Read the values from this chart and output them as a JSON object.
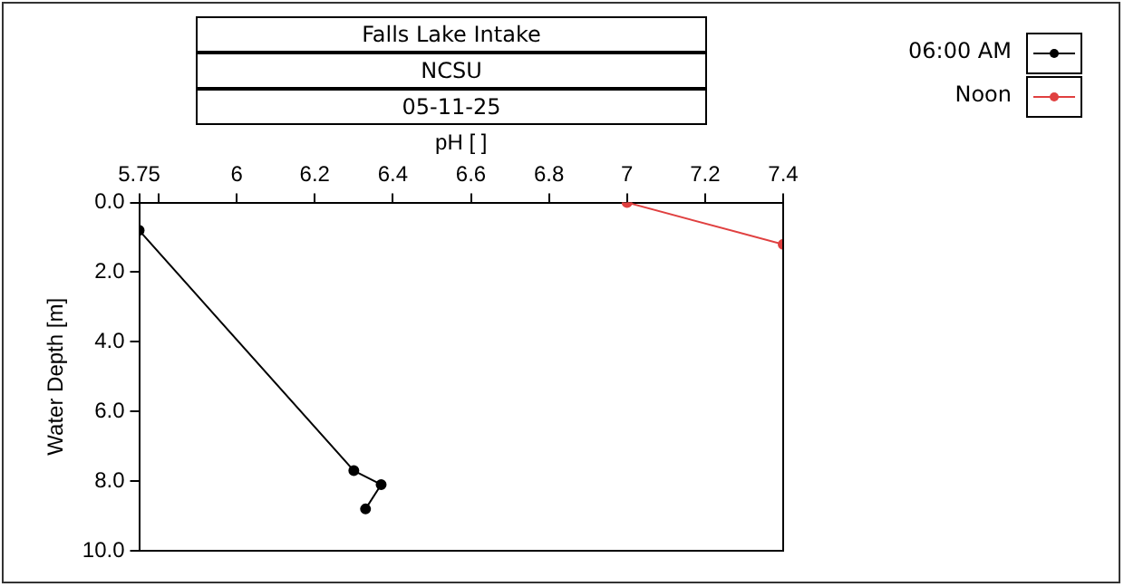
{
  "chart_data": {
    "type": "line",
    "title": "Falls Lake Intake",
    "subtitle": "NCSU",
    "annotations": [
      "05-11-25"
    ],
    "xlabel": "pH [ ]",
    "ylabel": "Water Depth [m]",
    "xlim": [
      5.75,
      7.4
    ],
    "xticks": [
      5.75,
      {
        "value": 5.8,
        "label": null
      },
      6,
      6.2,
      6.4,
      6.6,
      6.8,
      7,
      7.2,
      7.4
    ],
    "ylim": [
      10,
      0
    ],
    "yticks": [
      {
        "value": 0,
        "label": "0.0"
      },
      {
        "value": 2,
        "label": "2.0"
      },
      {
        "value": 4,
        "label": "4.0"
      },
      {
        "value": 6,
        "label": "6.0"
      },
      {
        "value": 8,
        "label": "8.0"
      },
      {
        "value": 10,
        "label": "10.0"
      }
    ],
    "series": [
      {
        "name": "06:00 AM",
        "color": "#000000",
        "marker": "circle",
        "x": [
          5.75,
          6.3,
          6.37,
          6.33
        ],
        "values": [
          0.8,
          7.7,
          8.1,
          8.8
        ]
      },
      {
        "name": "Noon",
        "color": "#e04040",
        "marker": "circle",
        "x": [
          7.0,
          7.4
        ],
        "values": [
          0.0,
          1.2
        ]
      }
    ],
    "legend": "top right",
    "grid": false
  }
}
